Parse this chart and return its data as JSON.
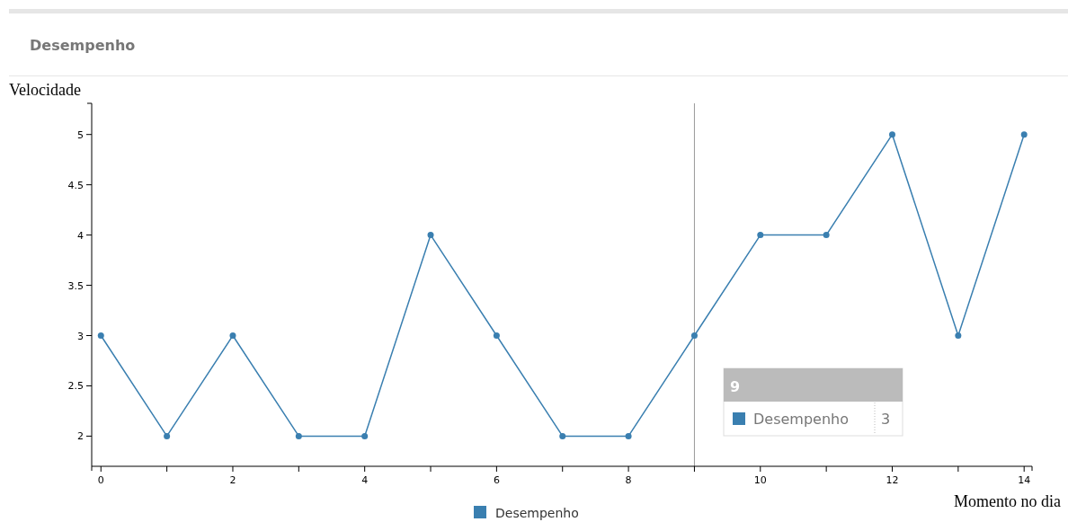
{
  "chart_data": {
    "type": "line",
    "title": "Desempenho",
    "xlabel": "Momento no dia",
    "ylabel": "Velocidade",
    "x": [
      0,
      1,
      2,
      3,
      4,
      5,
      6,
      7,
      8,
      9,
      10,
      11,
      12,
      13,
      14
    ],
    "series": [
      {
        "name": "Desempenho",
        "color": "#3a7fb0",
        "values": [
          3,
          2,
          3,
          2,
          2,
          4,
          3,
          2,
          2,
          3,
          4,
          4,
          5,
          3,
          5
        ]
      }
    ],
    "xlim": [
      -0.14,
      14.12
    ],
    "ylim": [
      1.7,
      5.31
    ],
    "xticks": [
      0,
      {
        "value": 1,
        "label": null
      },
      2,
      {
        "value": 3,
        "label": null
      },
      4,
      {
        "value": 5,
        "label": null
      },
      6,
      {
        "value": 7,
        "label": null
      },
      8,
      {
        "value": 9,
        "label": null
      },
      10,
      {
        "value": 11,
        "label": null
      },
      12,
      {
        "value": 13,
        "label": null
      },
      14
    ],
    "yticks": [
      2,
      2.5,
      3,
      3.5,
      4,
      4.5,
      5
    ],
    "ref_lines": [
      {
        "axis": "x",
        "value": 9,
        "color": "#999999"
      }
    ],
    "annotations": [
      "9",
      "3"
    ],
    "marker": "circle",
    "legend": "bottom",
    "grid": false
  }
}
